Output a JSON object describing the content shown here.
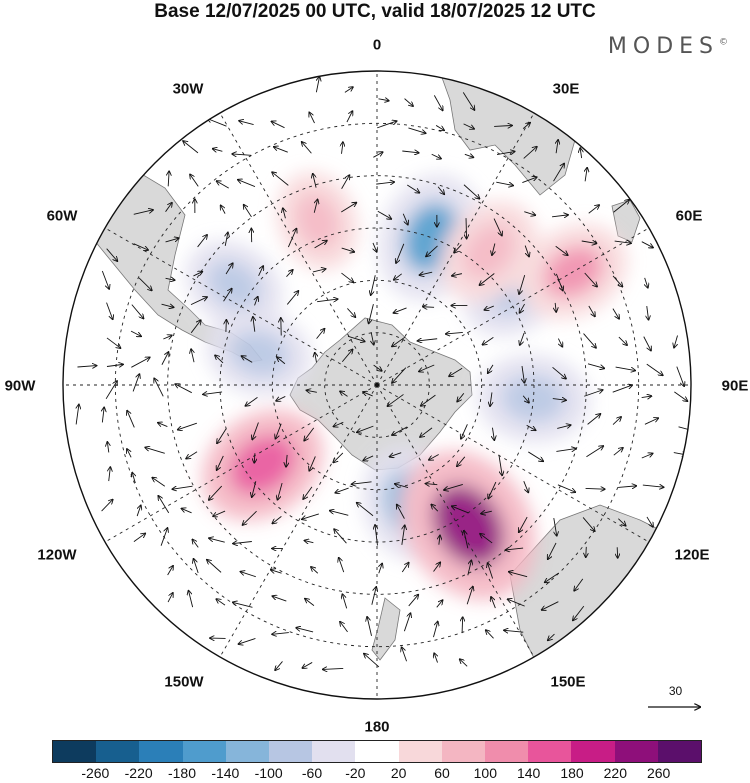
{
  "title": "Base 12/07/2025 00 UTC, valid 18/07/2025 12 UTC",
  "brand": "MODES",
  "brand_mark": "©",
  "longitude_labels": {
    "lon_0": "0",
    "lon_30e": "30E",
    "lon_60e": "60E",
    "lon_90e": "90E",
    "lon_120e": "120E",
    "lon_150e": "150E",
    "lon_180": "180",
    "lon_150w": "150W",
    "lon_120w": "120W",
    "lon_90w": "90W",
    "lon_60w": "60W",
    "lon_30w": "30W"
  },
  "reference_vector": {
    "value": "30"
  },
  "colorbar": {
    "colors": [
      "#0d3b5e",
      "#175f8f",
      "#2b7fb8",
      "#4f9ccd",
      "#86b5da",
      "#b7c6e3",
      "#e2e0ef",
      "#ffffff",
      "#f8d8da",
      "#f4b6c2",
      "#f08dac",
      "#e8559b",
      "#c81d86",
      "#8e0f7a",
      "#5b0f6b"
    ],
    "labels": [
      "-260",
      "-220",
      "-180",
      "-140",
      "-100",
      "-60",
      "-20",
      "20",
      "60",
      "100",
      "140",
      "180",
      "220",
      "260"
    ]
  },
  "anomaly_centers": [
    {
      "lon": 20,
      "lat": -45,
      "value": -150
    },
    {
      "lon": 55,
      "lat": -42,
      "value": -90
    },
    {
      "lon": -55,
      "lat": -40,
      "value": -70
    },
    {
      "lon": -75,
      "lat": -55,
      "value": -80
    },
    {
      "lon": 95,
      "lat": -45,
      "value": -100
    },
    {
      "lon": 165,
      "lat": -55,
      "value": -110
    },
    {
      "lon": -125,
      "lat": -50,
      "value": 150
    },
    {
      "lon": 147,
      "lat": -42,
      "value": 240
    },
    {
      "lon": 40,
      "lat": -40,
      "value": 90
    },
    {
      "lon": 60,
      "lat": -25,
      "value": 100
    },
    {
      "lon": -20,
      "lat": -40,
      "value": 60
    }
  ],
  "colors": {
    "land": "#d9d9d9",
    "coast": "#777777",
    "grid": "#222222",
    "arrow": "#111111"
  }
}
